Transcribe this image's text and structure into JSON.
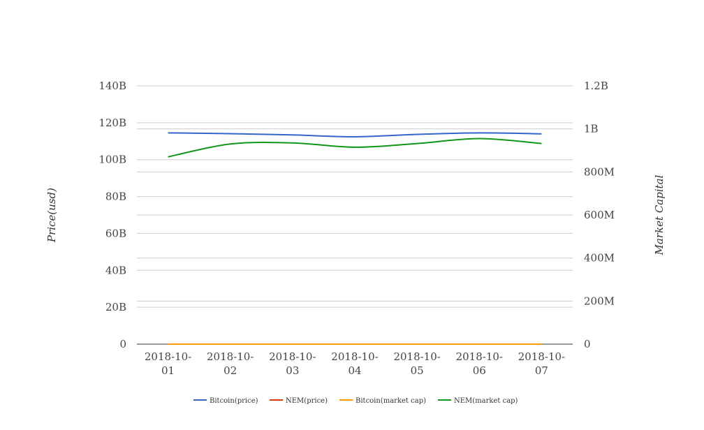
{
  "chart_data": {
    "type": "line",
    "title": "",
    "x": [
      "2018-10-01",
      "2018-10-02",
      "2018-10-03",
      "2018-10-04",
      "2018-10-05",
      "2018-10-06",
      "2018-10-07"
    ],
    "x_tick_labels": [
      [
        "2018-10-",
        "01"
      ],
      [
        "2018-10-",
        "02"
      ],
      [
        "2018-10-",
        "03"
      ],
      [
        "2018-10-",
        "04"
      ],
      [
        "2018-10-",
        "05"
      ],
      [
        "2018-10-",
        "06"
      ],
      [
        "2018-10-",
        "07"
      ]
    ],
    "y_left": {
      "label": "Price(usd)",
      "min": 0,
      "max": 140000000000,
      "ticks": [
        0,
        20000000000,
        40000000000,
        60000000000,
        80000000000,
        100000000000,
        120000000000,
        140000000000
      ],
      "tick_labels": [
        "0",
        "20B",
        "40B",
        "60B",
        "80B",
        "100B",
        "120B",
        "140B"
      ]
    },
    "y_right": {
      "label": "Market Capital",
      "min": 0,
      "max": 1200000000,
      "ticks": [
        0,
        200000000,
        400000000,
        600000000,
        800000000,
        1000000000,
        1200000000
      ],
      "tick_labels": [
        "0",
        "200M",
        "400M",
        "600M",
        "800M",
        "1B",
        "1.2B"
      ]
    },
    "grid": true,
    "legend_position": "bottom",
    "series": [
      {
        "name": "Bitcoin(price)",
        "axis": "left",
        "color": "#3366cc",
        "values": [
          114500000000,
          114100000000,
          113400000000,
          112400000000,
          113700000000,
          114500000000,
          114000000000
        ]
      },
      {
        "name": "NEM(price)",
        "axis": "left",
        "color": "#dc3912",
        "values": [
          0.1,
          0.1,
          0.1,
          0.1,
          0.1,
          0.1,
          0.1
        ]
      },
      {
        "name": "Bitcoin(market cap)",
        "axis": "right",
        "color": "#ff9900",
        "values": [
          6600,
          6600,
          6580,
          6530,
          6590,
          6600,
          6580
        ]
      },
      {
        "name": "NEM(market cap)",
        "axis": "right",
        "color": "#109618",
        "values": [
          870000000,
          930000000,
          935000000,
          915000000,
          932000000,
          955000000,
          932000000
        ]
      }
    ]
  }
}
